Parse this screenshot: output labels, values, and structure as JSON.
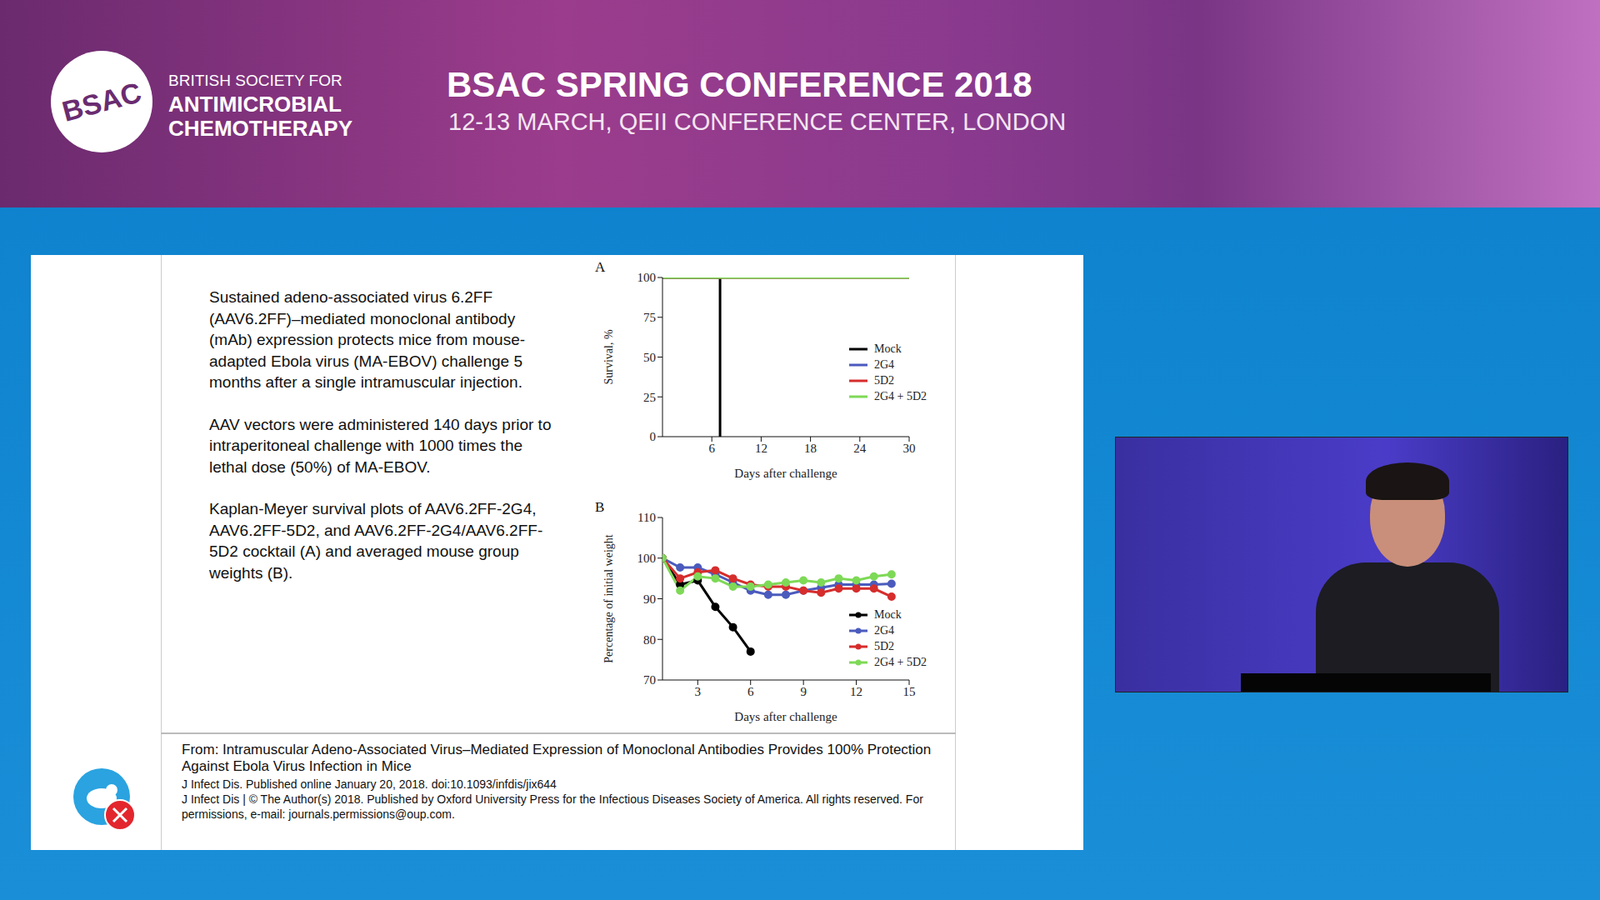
{
  "header": {
    "logo": "BSAC",
    "org": [
      "BRITISH SOCIETY FOR",
      "ANTIMICROBIAL",
      "CHEMOTHERAPY"
    ],
    "title": "BSAC SPRING CONFERENCE 2018",
    "subtitle": "12-13 MARCH, QEII CONFERENCE CENTER, LONDON"
  },
  "slide": {
    "paragraphs": [
      "Sustained adeno-associated virus 6.2FF (AAV6.2FF)–mediated monoclonal antibody (mAb) expression protects mice from mouse-adapted Ebola virus (MA-EBOV) challenge 5 months after a single intramuscular injection.",
      "AAV vectors were administered 140 days prior to intraperitoneal challenge with 1000 times the lethal dose (50%) of MA-EBOV.",
      "Kaplan-Meyer survival plots of AAV6.2FF-2G4, AAV6.2FF-5D2, and AAV6.2FF-2G4/AAV6.2FF-5D2 cocktail (A) and averaged mouse group weights (B)."
    ],
    "citation": {
      "title": "From: Intramuscular Adeno-Associated Virus–Mediated Expression of Monoclonal Antibodies Provides 100% Protection Against Ebola Virus Infection in Mice",
      "lines": [
        "J Infect Dis. Published online  January 20, 2018. doi:10.1093/infdis/jix644",
        "J Infect Dis | © The Author(s) 2018. Published by Oxford University Press for the Infectious Diseases Society of America. All rights reserved. For permissions, e-mail: journals.permissions@oup.com."
      ]
    }
  },
  "chart_data": [
    {
      "panel": "A",
      "type": "line",
      "x_label": "Days after challenge",
      "y_label": "Survival, %",
      "xlim": [
        0,
        30
      ],
      "xticks": [
        6,
        12,
        18,
        24,
        30
      ],
      "ylim": [
        0,
        100
      ],
      "yticks": [
        0,
        25,
        50,
        75,
        100
      ],
      "grid": false,
      "legend": "right",
      "marker": "none",
      "series": [
        {
          "name": "Mock",
          "color": "#000000",
          "x": [
            0,
            7,
            7
          ],
          "values": [
            100,
            100,
            0
          ]
        },
        {
          "name": "2G4",
          "color": "#4b5bbd",
          "x": [
            0,
            30
          ],
          "values": [
            100,
            100
          ]
        },
        {
          "name": "5D2",
          "color": "#d62d2d",
          "x": [
            0,
            30
          ],
          "values": [
            100,
            100
          ]
        },
        {
          "name": "2G4 + 5D2",
          "color": "#7ed957",
          "x": [
            0,
            30
          ],
          "values": [
            100,
            100
          ]
        }
      ]
    },
    {
      "panel": "B",
      "type": "line",
      "x_label": "Days after challenge",
      "y_label": "Percentage of initial weight",
      "xlim": [
        1,
        15
      ],
      "xticks": [
        3,
        6,
        9,
        12,
        15
      ],
      "ylim": [
        70,
        110
      ],
      "yticks": [
        70,
        80,
        90,
        100,
        110
      ],
      "grid": false,
      "legend": "lower right",
      "marker": "circle",
      "series": [
        {
          "name": "Mock",
          "color": "#000000",
          "x": [
            1,
            2,
            3,
            4,
            5,
            6
          ],
          "values": [
            100,
            93.5,
            94.5,
            88,
            83,
            77
          ]
        },
        {
          "name": "2G4",
          "color": "#4b5bbd",
          "x": [
            1,
            2,
            3,
            4,
            5,
            6,
            7,
            8,
            9,
            10,
            11,
            12,
            13,
            14
          ],
          "values": [
            100,
            97.7,
            97.7,
            96,
            94,
            92,
            91,
            91,
            92,
            92.7,
            93.5,
            93.5,
            93.5,
            93.7
          ]
        },
        {
          "name": "5D2",
          "color": "#d62d2d",
          "x": [
            1,
            2,
            3,
            4,
            5,
            6,
            7,
            8,
            9,
            10,
            11,
            12,
            13,
            14
          ],
          "values": [
            100,
            95,
            96.5,
            97,
            95,
            93.5,
            93,
            93,
            92,
            91.5,
            92.5,
            92.5,
            92.5,
            90.5
          ]
        },
        {
          "name": "2G4 + 5D2",
          "color": "#7ed957",
          "x": [
            1,
            2,
            3,
            4,
            5,
            6,
            7,
            8,
            9,
            10,
            11,
            12,
            13,
            14
          ],
          "values": [
            100,
            92,
            95.5,
            95,
            93,
            93,
            93.5,
            94,
            94.5,
            94,
            95,
            94.5,
            95.5,
            96
          ]
        }
      ]
    }
  ]
}
